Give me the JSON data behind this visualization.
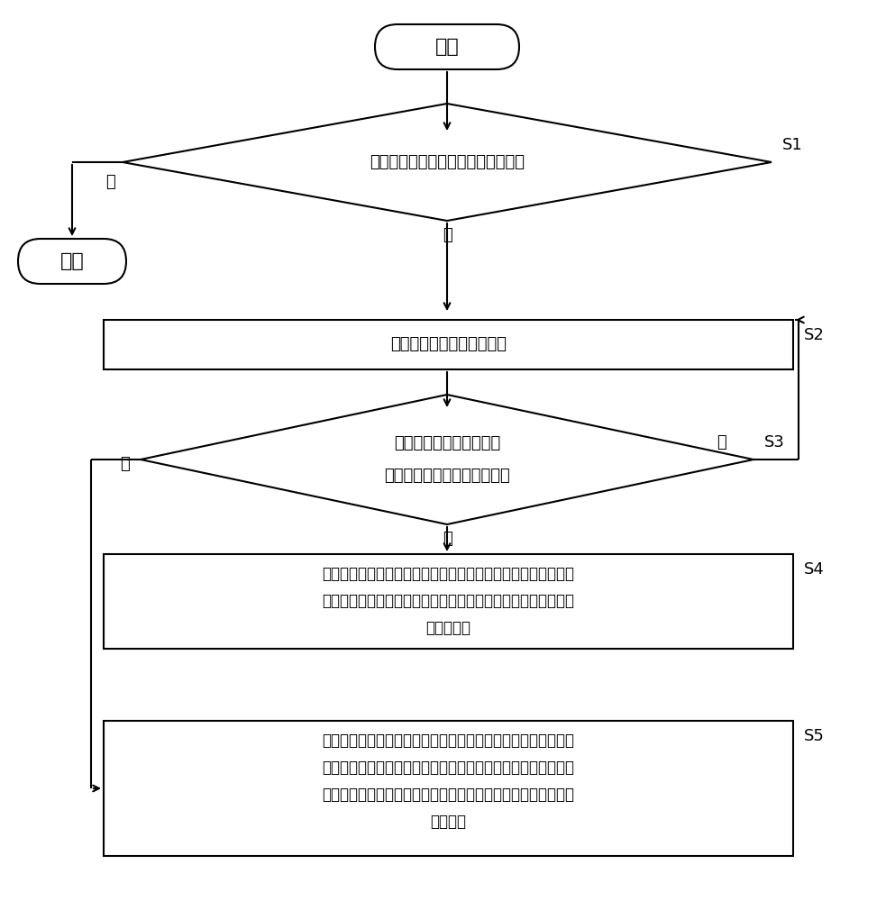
{
  "bg_color": "#ffffff",
  "line_color": "#000000",
  "text_color": "#000000",
  "title": "开始",
  "end_label": "结束",
  "s1_label": "S1",
  "s2_label": "S2",
  "s3_label": "S3",
  "s4_label": "S4",
  "s5_label": "S5",
  "diamond1_text": "检测无线充电设备是否连接外部设备",
  "box2_text": "对外部设备的类型进行识别",
  "diamond3_text1": "检测移动终端是否已置于",
  "diamond3_text2": "无线充电设备的充电区域之上",
  "box4_text1": "当识别出外部设备的类型为第一类型，且检测移动终端已置于无",
  "box4_text2": "线充电设备的充电区域之上时，控制无线充电设备对移动终端进",
  "box4_text3": "行无线充电",
  "box5_text1": "当识别出外部设备的类型为第二类型，且检测移动终端已置于无",
  "box5_text2": "线充电设备的充电区域之上时，控制无线充电设备对移动终端进",
  "box5_text3": "行无线充电，并通过无线充电设备控制外部设备与移动终端进行",
  "box5_text4": "数据传输",
  "yes_label": "是",
  "no_label": "否",
  "font_size_title": 16,
  "font_size_body": 13,
  "font_size_small": 12,
  "font_size_step": 13,
  "lw": 1.5
}
